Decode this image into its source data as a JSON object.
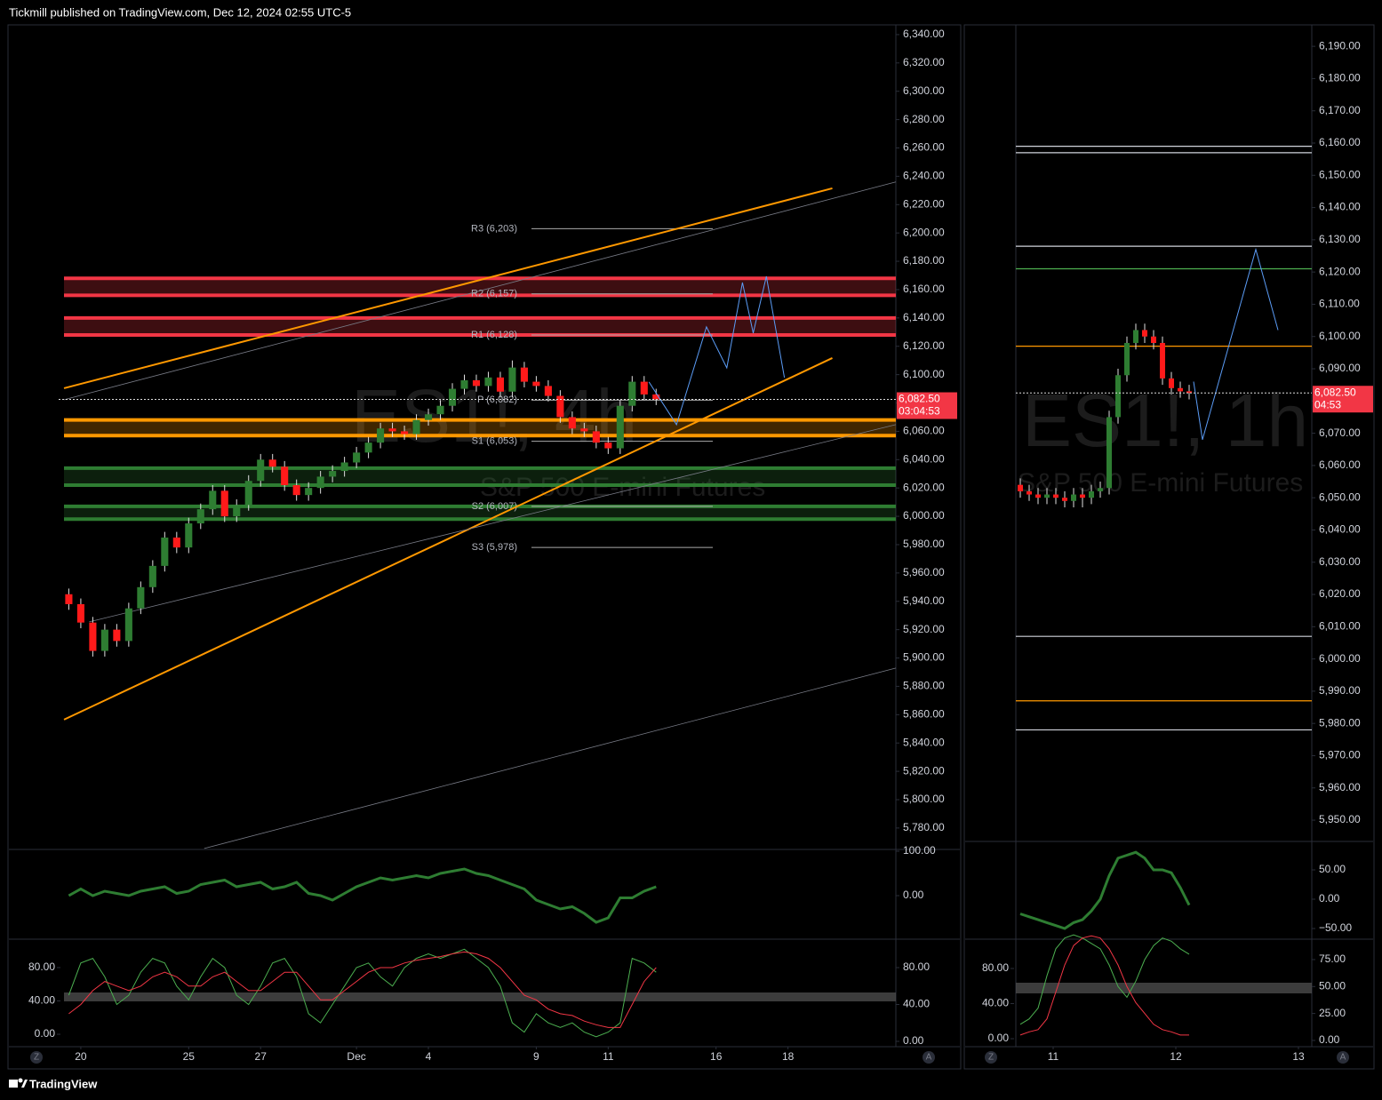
{
  "header": {
    "publisher": "Tickmill published on TradingView.com, Dec 12, 2024 02:55 UTC-5"
  },
  "footer": {
    "brand": "TradingView"
  },
  "axis_buttons": [
    "Z",
    "A"
  ],
  "chart_data": [
    {
      "type": "candlestick",
      "watermark": "ES1!, 4h",
      "subtitle": "S&P 500 E-mini Futures",
      "xlim": [
        -5,
        69
      ],
      "xticks": [
        {
          "value": 1,
          "label": "20"
        },
        {
          "value": 10,
          "label": "25"
        },
        {
          "value": 16,
          "label": "27"
        },
        {
          "value": 24,
          "label": "Dec"
        },
        {
          "value": 30,
          "label": "4"
        },
        {
          "value": 39,
          "label": "9"
        },
        {
          "value": 45,
          "label": "11"
        },
        {
          "value": 54,
          "label": "16"
        },
        {
          "value": 60,
          "label": "18"
        }
      ],
      "ylim": [
        5765.5,
        6345.6
      ],
      "yticks": [
        {
          "value": 5780,
          "label": "5,780.00"
        },
        {
          "value": 5800,
          "label": "5,800.00"
        },
        {
          "value": 5820,
          "label": "5,820.00"
        },
        {
          "value": 5840,
          "label": "5,840.00"
        },
        {
          "value": 5860,
          "label": "5,860.00"
        },
        {
          "value": 5880,
          "label": "5,880.00"
        },
        {
          "value": 5900,
          "label": "5,900.00"
        },
        {
          "value": 5920,
          "label": "5,920.00"
        },
        {
          "value": 5940,
          "label": "5,940.00"
        },
        {
          "value": 5960,
          "label": "5,960.00"
        },
        {
          "value": 5980,
          "label": "5,980.00"
        },
        {
          "value": 6000,
          "label": "6,000.00"
        },
        {
          "value": 6020,
          "label": "6,020.00"
        },
        {
          "value": 6040,
          "label": "6,040.00"
        },
        {
          "value": 6060,
          "label": "6,060.00"
        },
        {
          "value": 6080,
          "label": "6,080.00"
        },
        {
          "value": 6100,
          "label": "6,100.00"
        },
        {
          "value": 6120,
          "label": "6,120.00"
        },
        {
          "value": 6140,
          "label": "6,140.00"
        },
        {
          "value": 6160,
          "label": "6,160.00"
        },
        {
          "value": 6180,
          "label": "6,180.00"
        },
        {
          "value": 6200,
          "label": "6,200.00"
        },
        {
          "value": 6220,
          "label": "6,220.00"
        },
        {
          "value": 6240,
          "label": "6,240.00"
        },
        {
          "value": 6260,
          "label": "6,260.00"
        },
        {
          "value": 6280,
          "label": "6,280.00"
        },
        {
          "value": 6300,
          "label": "6,300.00"
        },
        {
          "value": 6320,
          "label": "6,320.00"
        },
        {
          "value": 6340,
          "label": "6,340.00"
        }
      ],
      "last_price": {
        "value": 6082.5,
        "label": "6,082.50"
      },
      "countdown": "03:04:53",
      "open": [
        5945,
        5938,
        5925,
        5905,
        5920,
        5912,
        5935,
        5950,
        5965,
        5985,
        5978,
        5995,
        6005,
        6018,
        6000,
        6008,
        6025,
        6040,
        6035,
        6022,
        6015,
        6020,
        6028,
        6032,
        6038,
        6045,
        6052,
        6062,
        6060,
        6058,
        6068,
        6072,
        6078,
        6090,
        6096,
        6092,
        6098,
        6088,
        6105,
        6095,
        6092,
        6085,
        6070,
        6062,
        6060,
        6052,
        6048,
        6078,
        6095,
        6086
      ],
      "high": [
        5949,
        5942,
        5929,
        5924,
        5924,
        5939,
        5954,
        5969,
        5989,
        5989,
        5999,
        6009,
        6022,
        6022,
        6012,
        6029,
        6044,
        6044,
        6039,
        6026,
        6024,
        6032,
        6036,
        6042,
        6049,
        6056,
        6066,
        6066,
        6064,
        6072,
        6076,
        6082,
        6094,
        6100,
        6100,
        6102,
        6102,
        6110,
        6109,
        6099,
        6096,
        6089,
        6074,
        6066,
        6064,
        6056,
        6082,
        6099,
        6099,
        6090
      ],
      "low": [
        5934,
        5921,
        5901,
        5901,
        5908,
        5908,
        5931,
        5946,
        5961,
        5974,
        5974,
        5991,
        6001,
        5996,
        5996,
        6004,
        6021,
        6031,
        6018,
        6011,
        6011,
        6016,
        6024,
        6028,
        6034,
        6041,
        6048,
        6056,
        6054,
        6054,
        6064,
        6068,
        6074,
        6086,
        6088,
        6088,
        6084,
        6084,
        6091,
        6088,
        6081,
        6066,
        6058,
        6056,
        6048,
        6044,
        6044,
        6074,
        6082,
        6078.5
      ],
      "close": [
        5938,
        5925,
        5905,
        5920,
        5912,
        5935,
        5950,
        5965,
        5985,
        5978,
        5995,
        6005,
        6018,
        6000,
        6008,
        6025,
        6040,
        6035,
        6022,
        6015,
        6020,
        6028,
        6032,
        6038,
        6045,
        6052,
        6062,
        6060,
        6058,
        6068,
        6072,
        6078,
        6090,
        6096,
        6092,
        6098,
        6088,
        6105,
        6095,
        6092,
        6085,
        6070,
        6062,
        6060,
        6052,
        6048,
        6078,
        6095,
        6086,
        6082.5
      ],
      "up_color": "#2e7d32",
      "down_color": "#ff1a1a",
      "pivots": [
        {
          "label": "R3 (6,203)",
          "value": 6203
        },
        {
          "label": "R2 (6,157)",
          "value": 6157
        },
        {
          "label": "R1 (6,128)",
          "value": 6128
        },
        {
          "label": "P (6,082)",
          "value": 6082
        },
        {
          "label": "S1 (6,053)",
          "value": 6053
        },
        {
          "label": "S2 (6,007)",
          "value": 6007
        },
        {
          "label": "S3 (5,978)",
          "value": 5978
        }
      ],
      "zones": [
        {
          "low": 6156,
          "high": 6168,
          "color": "#f23645"
        },
        {
          "low": 6128,
          "high": 6140,
          "color": "#f23645"
        },
        {
          "low": 6057,
          "high": 6068,
          "color": "#ff9800"
        },
        {
          "low": 6022,
          "high": 6034,
          "color": "#2e7d32"
        },
        {
          "low": 5998,
          "high": 6007,
          "color": "#2e7d32"
        }
      ],
      "trendlines": [
        {
          "x": [
            -0.4,
            63.7
          ],
          "y": [
            6090.4,
            6231.5
          ],
          "color": "#ff9800"
        },
        {
          "x": [
            -0.4,
            63.7
          ],
          "y": [
            5856.5,
            6111.7
          ],
          "color": "#ff9800"
        },
        {
          "x": [
            -0.4,
            69
          ],
          "y": [
            6082.3,
            6236
          ],
          "color": "#787b86"
        },
        {
          "x": [
            1.7,
            69
          ],
          "y": [
            5925.5,
            6064.7
          ],
          "color": "#787b86"
        },
        {
          "x": [
            11.3,
            69
          ],
          "y": [
            5765.6,
            5892.9
          ],
          "color": "#787b86"
        }
      ],
      "projection": {
        "x": [
          48.4,
          50.7,
          53.2,
          54.9,
          56.2,
          57.1,
          58.2,
          59.7
        ],
        "y": [
          6094.8,
          6064.7,
          6133.7,
          6104.8,
          6165.0,
          6129.3,
          6169.4,
          6097.9
        ],
        "color": "#5b9cf6"
      },
      "oscillator": {
        "ylim": [
          -98,
          102
        ],
        "yticks": [
          {
            "value": 100,
            "label": "100.00"
          },
          {
            "value": 0,
            "label": "0.00"
          }
        ],
        "color": "#2e7d32",
        "values": [
          0,
          15,
          0,
          10,
          5,
          0,
          10,
          15,
          20,
          5,
          10,
          25,
          30,
          35,
          20,
          25,
          30,
          15,
          20,
          30,
          5,
          0,
          -10,
          5,
          20,
          30,
          40,
          35,
          40,
          45,
          40,
          50,
          55,
          60,
          50,
          45,
          35,
          25,
          15,
          -10,
          -20,
          -30,
          -25,
          -40,
          -60,
          -50,
          -5,
          -5,
          10,
          20
        ]
      },
      "stochastic": {
        "ylim": [
          -5.8,
          109.9
        ],
        "yticks": [
          {
            "value": 80,
            "label": "80.00"
          },
          {
            "value": 40,
            "label": "40.00"
          },
          {
            "value": 0,
            "label": "0.00"
          }
        ],
        "left_ylim": [
          -14.9,
          113
        ],
        "left_yticks": [
          {
            "value": 80,
            "label": "80.00"
          },
          {
            "value": 40,
            "label": "40.00"
          },
          {
            "value": 0,
            "label": "0.00"
          }
        ],
        "series": [
          {
            "color": "#4caf50",
            "values": [
              50,
              85,
              90,
              70,
              40,
              50,
              75,
              90,
              85,
              60,
              45,
              70,
              90,
              80,
              50,
              40,
              60,
              85,
              90,
              70,
              30,
              20,
              40,
              60,
              80,
              85,
              70,
              60,
              80,
              90,
              95,
              90,
              95,
              100,
              90,
              80,
              60,
              20,
              10,
              30,
              20,
              15,
              20,
              10,
              5,
              10,
              20,
              90,
              85,
              75
            ]
          },
          {
            "color": "#f23645",
            "values": [
              30,
              40,
              55,
              65,
              60,
              55,
              60,
              70,
              75,
              70,
              60,
              60,
              70,
              75,
              65,
              55,
              55,
              65,
              75,
              75,
              60,
              45,
              45,
              55,
              65,
              75,
              80,
              80,
              85,
              88,
              90,
              92,
              95,
              97,
              95,
              90,
              80,
              65,
              50,
              45,
              35,
              30,
              28,
              22,
              18,
              15,
              15,
              40,
              65,
              80
            ]
          }
        ]
      }
    },
    {
      "type": "candlestick",
      "watermark": "ES1!, 1h",
      "subtitle": "S&P 500 E-mini Futures",
      "xlim": [
        -6.1,
        32.8
      ],
      "xticks": [
        {
          "value": 3.7,
          "label": "11"
        },
        {
          "value": 17.5,
          "label": "12"
        },
        {
          "value": 31.3,
          "label": "13"
        }
      ],
      "ylim": [
        5943.4,
        6196.1
      ],
      "yticks": [
        {
          "value": 5950,
          "label": "5,950.00"
        },
        {
          "value": 5960,
          "label": "5,960.00"
        },
        {
          "value": 5970,
          "label": "5,970.00"
        },
        {
          "value": 5980,
          "label": "5,980.00"
        },
        {
          "value": 5990,
          "label": "5,990.00"
        },
        {
          "value": 6000,
          "label": "6,000.00"
        },
        {
          "value": 6010,
          "label": "6,010.00"
        },
        {
          "value": 6020,
          "label": "6,020.00"
        },
        {
          "value": 6030,
          "label": "6,030.00"
        },
        {
          "value": 6040,
          "label": "6,040.00"
        },
        {
          "value": 6050,
          "label": "6,050.00"
        },
        {
          "value": 6060,
          "label": "6,060.00"
        },
        {
          "value": 6070,
          "label": "6,070.00"
        },
        {
          "value": 6080,
          "label": "6,080.00"
        },
        {
          "value": 6090,
          "label": "6,090.00"
        },
        {
          "value": 6100,
          "label": "6,100.00"
        },
        {
          "value": 6110,
          "label": "6,110.00"
        },
        {
          "value": 6120,
          "label": "6,120.00"
        },
        {
          "value": 6130,
          "label": "6,130.00"
        },
        {
          "value": 6140,
          "label": "6,140.00"
        },
        {
          "value": 6150,
          "label": "6,150.00"
        },
        {
          "value": 6160,
          "label": "6,160.00"
        },
        {
          "value": 6170,
          "label": "6,170.00"
        },
        {
          "value": 6180,
          "label": "6,180.00"
        },
        {
          "value": 6190,
          "label": "6,190.00"
        }
      ],
      "last_price": {
        "value": 6082.5,
        "label": "6,082.50"
      },
      "countdown": "04:53",
      "open": [
        6054,
        6052,
        6051,
        6050,
        6051,
        6050,
        6049,
        6051,
        6050,
        6052,
        6053,
        6075,
        6088,
        6098,
        6102,
        6100,
        6098,
        6087,
        6084,
        6083
      ],
      "high": [
        6056,
        6054,
        6053,
        6053,
        6053,
        6052,
        6053,
        6053,
        6054,
        6055,
        6077,
        6090,
        6100,
        6104,
        6104,
        6102,
        6100,
        6089,
        6086,
        6085
      ],
      "low": [
        6050,
        6049,
        6048,
        6048,
        6048,
        6047,
        6047,
        6047,
        6048,
        6050,
        6051,
        6073,
        6086,
        6096,
        6098,
        6096,
        6085,
        6082,
        6081,
        6080.5
      ],
      "close": [
        6052,
        6051,
        6050,
        6051,
        6050,
        6049,
        6051,
        6050,
        6052,
        6053,
        6075,
        6088,
        6098,
        6102,
        6100,
        6098,
        6087,
        6084,
        6083,
        6082.5
      ],
      "up_color": "#2e7d32",
      "down_color": "#ff1a1a",
      "levels": [
        {
          "value": 6159,
          "color": "#d1d4dc"
        },
        {
          "value": 6157,
          "color": "#d1d4dc"
        },
        {
          "value": 6128,
          "color": "#d1d4dc"
        },
        {
          "value": 6121,
          "color": "#4caf50"
        },
        {
          "value": 6097,
          "color": "#ff9800"
        },
        {
          "value": 6007,
          "color": "#d1d4dc"
        },
        {
          "value": 5987,
          "color": "#ff9800"
        },
        {
          "value": 5978,
          "color": "#d1d4dc"
        }
      ],
      "projection": {
        "x": [
          19.5,
          20.5,
          26.5,
          29
        ],
        "y": [
          6086,
          6068,
          6127,
          6102
        ],
        "color": "#5b9cf6"
      },
      "oscillator": {
        "ylim": [
          -68.2,
          97
        ],
        "yticks": [
          {
            "value": 50,
            "label": "50.00"
          },
          {
            "value": 0,
            "label": "0.00"
          },
          {
            "value": -50,
            "label": "−50.00"
          }
        ],
        "color": "#2e7d32",
        "values": [
          -25,
          -30,
          -35,
          -40,
          -45,
          -50,
          -40,
          -35,
          -20,
          0,
          40,
          70,
          75,
          80,
          70,
          50,
          50,
          45,
          20,
          -10
        ]
      },
      "stochastic": {
        "ylim": [
          -5.8,
          93.1
        ],
        "yticks": [
          {
            "value": 75,
            "label": "75.00"
          },
          {
            "value": 50,
            "label": "50.00"
          },
          {
            "value": 25,
            "label": "25.00"
          },
          {
            "value": 0,
            "label": "0.00"
          }
        ],
        "left_ylim": [
          -9.1,
          112.4
        ],
        "left_yticks": [
          {
            "value": 80,
            "label": "80.00"
          },
          {
            "value": 40,
            "label": "40.00"
          },
          {
            "value": 0,
            "label": "0.00"
          }
        ],
        "series": [
          {
            "color": "#4caf50",
            "values": [
              15,
              20,
              30,
              60,
              85,
              95,
              98,
              95,
              90,
              85,
              70,
              50,
              40,
              55,
              75,
              88,
              95,
              92,
              85,
              80
            ]
          },
          {
            "color": "#f23645",
            "values": [
              5,
              8,
              10,
              20,
              45,
              70,
              88,
              95,
              97,
              95,
              85,
              70,
              50,
              35,
              25,
              15,
              10,
              8,
              5,
              5
            ]
          }
        ]
      }
    }
  ]
}
